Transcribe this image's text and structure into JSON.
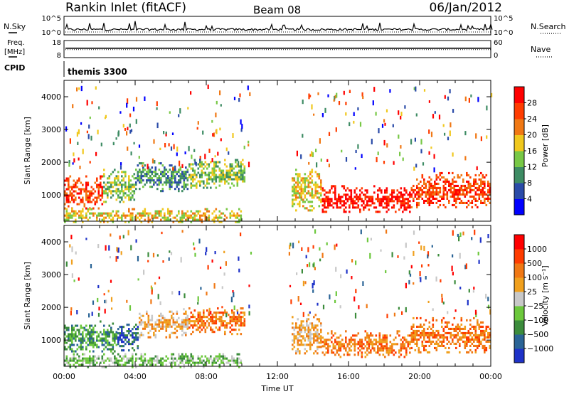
{
  "header": {
    "station": "Rankin Inlet (fitACF)",
    "beam": "Beam 08",
    "date": "06/Jan/2012"
  },
  "chart_data": [
    {
      "type": "line",
      "panel": "noise",
      "left_label": "N.Sky",
      "right_label": "N.Search",
      "left_ticks": [
        "10^5",
        "10^0"
      ],
      "right_ticks": [
        "10^5",
        "10^0"
      ]
    },
    {
      "type": "line",
      "panel": "frequency",
      "left_label_line1": "Freq.",
      "left_label_line2": "[MHz]",
      "right_label": "Nave",
      "left_ticks": [
        18,
        8
      ],
      "right_ticks": [
        60,
        0
      ],
      "freq_value_mhz": 13.5,
      "nave_value": 28
    },
    {
      "type": "table",
      "panel": "cpid",
      "label": "CPID",
      "value": "themis 3300"
    },
    {
      "type": "heatmap",
      "panel": "power",
      "ylabel": "Slant Range [km]",
      "yticks": [
        1000,
        2000,
        3000,
        4000
      ],
      "ylim": [
        200,
        4500
      ],
      "xlim": [
        0,
        24
      ],
      "colorbar_label": "Power [dB]",
      "colorbar_ticks": [
        "4",
        "8",
        "12",
        "16",
        "20",
        "24",
        "28"
      ],
      "colorbar_colors": [
        "#0000ff",
        "#2a4ba8",
        "#3e8c64",
        "#78c846",
        "#f0c81e",
        "#f07814",
        "#ff3c00",
        "#ff0000"
      ],
      "echo_regions": [
        {
          "t0": 0.0,
          "t1": 2.2,
          "r0": 600,
          "r1": 1600,
          "level": 6
        },
        {
          "t0": 2.2,
          "t1": 4.0,
          "r0": 800,
          "r1": 1800,
          "level": 3
        },
        {
          "t0": 4.0,
          "t1": 7.0,
          "r0": 1100,
          "r1": 2000,
          "level": 2
        },
        {
          "t0": 7.0,
          "t1": 10.2,
          "r0": 1200,
          "r1": 2100,
          "level": 3
        },
        {
          "t0": 12.8,
          "t1": 14.5,
          "r0": 500,
          "r1": 1800,
          "level": 4
        },
        {
          "t0": 14.5,
          "t1": 19.5,
          "r0": 500,
          "r1": 1300,
          "level": 7
        },
        {
          "t0": 19.5,
          "t1": 24.0,
          "r0": 600,
          "r1": 1700,
          "level": 6
        },
        {
          "t0": 0.0,
          "t1": 10.0,
          "r0": 200,
          "r1": 600,
          "level": 4
        }
      ]
    },
    {
      "type": "heatmap",
      "panel": "velocity",
      "ylabel": "Slant Range [km]",
      "yticks": [
        1000,
        2000,
        3000,
        4000
      ],
      "ylim": [
        200,
        4500
      ],
      "xlim": [
        0,
        24
      ],
      "xlabel": "Time UT",
      "xticks": [
        "00:00",
        "04:00",
        "08:00",
        "12:00",
        "16:00",
        "20:00",
        "00:00"
      ],
      "colorbar_label": "Velocity [m s⁻¹]",
      "colorbar_ticks": [
        "1000",
        "500",
        "100",
        "25",
        "−25",
        "−100",
        "−500",
        "−1000"
      ],
      "colorbar_colors": [
        "#1e32c8",
        "#2a6496",
        "#3c8c3c",
        "#6cc83c",
        "#c8c8c8",
        "#f0a01e",
        "#f07814",
        "#ff3c00",
        "#ff0000"
      ],
      "echo_regions": [
        {
          "t0": 0.0,
          "t1": 3.0,
          "r0": 600,
          "r1": 1600,
          "level": 2
        },
        {
          "t0": 3.0,
          "t1": 4.2,
          "r0": 700,
          "r1": 1500,
          "level": 1
        },
        {
          "t0": 4.2,
          "t1": 7.0,
          "r0": 1100,
          "r1": 1900,
          "level": 5
        },
        {
          "t0": 7.0,
          "t1": 10.2,
          "r0": 1200,
          "r1": 2000,
          "level": 6
        },
        {
          "t0": 12.8,
          "t1": 14.5,
          "r0": 500,
          "r1": 1800,
          "level": 5
        },
        {
          "t0": 14.5,
          "t1": 19.5,
          "r0": 500,
          "r1": 1300,
          "level": 6
        },
        {
          "t0": 19.5,
          "t1": 24.0,
          "r0": 600,
          "r1": 1700,
          "level": 6
        },
        {
          "t0": 0.0,
          "t1": 10.0,
          "r0": 200,
          "r1": 600,
          "level": 3
        }
      ]
    }
  ]
}
